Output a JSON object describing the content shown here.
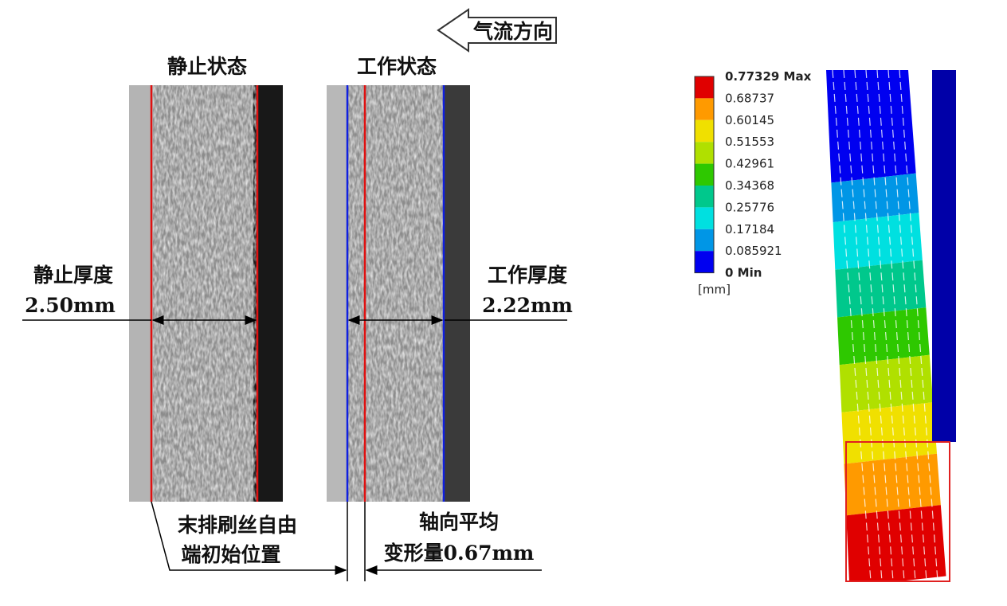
{
  "airflow_label": "气流方向",
  "panels": [
    {
      "title": "静止状态",
      "thickness_label": "静止厚度",
      "thickness_value": "2.50mm"
    },
    {
      "title": "工作状态",
      "thickness_label": "工作厚度",
      "thickness_value": "2.22mm"
    }
  ],
  "annotations": {
    "initial_position": [
      "末排刷丝自由",
      "端初始位置"
    ],
    "deformation": [
      "轴向平均",
      "变形量0.67mm"
    ]
  },
  "legend": {
    "labels": [
      "0.77329 Max",
      "0.68737",
      "0.60145",
      "0.51553",
      "0.42961",
      "0.34368",
      "0.25776",
      "0.17184",
      "0.085921",
      "0 Min"
    ],
    "colors": [
      "#e00000",
      "#ff9a00",
      "#f0e000",
      "#b0e000",
      "#2ec800",
      "#00c88c",
      "#00e0e0",
      "#0096e6",
      "#0000f0"
    ],
    "unit": "[mm]"
  }
}
